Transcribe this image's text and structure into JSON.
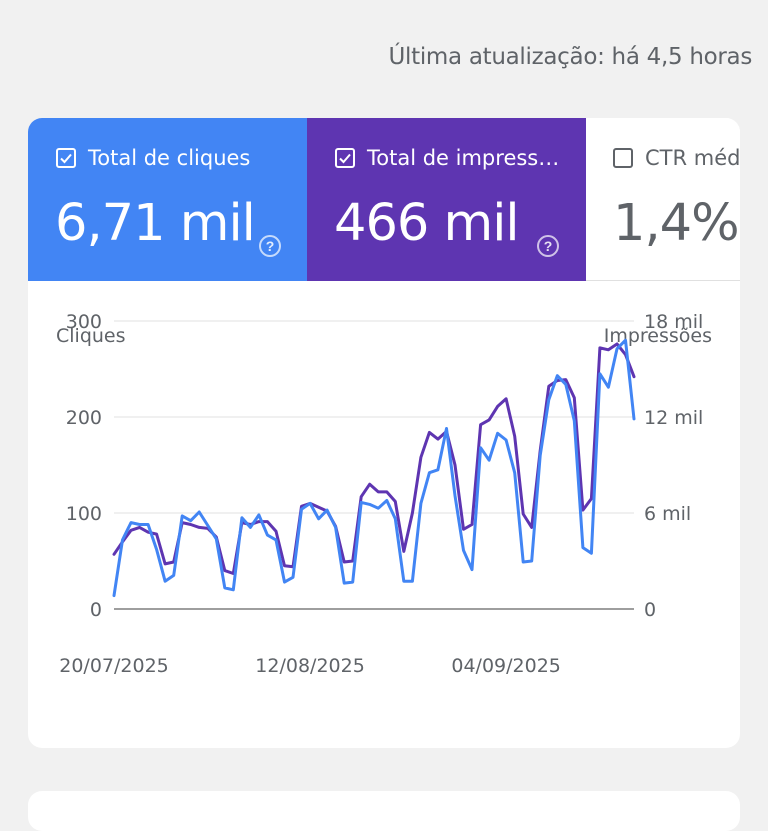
{
  "header": {
    "last_update": "Última atualização: há 4,5 horas"
  },
  "tiles": {
    "clicks": {
      "label": "Total de cliques",
      "value": "6,71 mil",
      "checked": true,
      "color": "#4285f4"
    },
    "impressions": {
      "label": "Total de impress…",
      "value": "466 mil",
      "checked": true,
      "color": "#5e35b1"
    },
    "ctr": {
      "label": "CTR méd",
      "value": "1,4%",
      "checked": false
    }
  },
  "icons": {
    "help": "help-icon",
    "check": "checkbox-checked-icon"
  },
  "chart_data": {
    "type": "line",
    "ylabel_left": "Cliques",
    "ylabel_right": "Impressões",
    "left_ticks": [
      "0",
      "100",
      "200",
      "300"
    ],
    "right_ticks": [
      "0",
      "6 mil",
      "12 mil",
      "18 mil"
    ],
    "ylim_left": [
      0,
      300
    ],
    "ylim_right": [
      0,
      18000
    ],
    "x_tick_labels": [
      "20/07/2025",
      "12/08/2025",
      "04/09/2025"
    ],
    "x_tick_index": [
      0,
      23,
      46
    ],
    "grid": true,
    "series": [
      {
        "axis": "left",
        "color": "#4285f4",
        "values": [
          14,
          72,
          90,
          88,
          88,
          62,
          29,
          35,
          97,
          92,
          101,
          87,
          73,
          22,
          20,
          95,
          85,
          98,
          77,
          72,
          28,
          33,
          104,
          110,
          94,
          103,
          85,
          27,
          28,
          111,
          109,
          105,
          113,
          94,
          29,
          29,
          110,
          142,
          145,
          188,
          118,
          61,
          41,
          168,
          155,
          183,
          176,
          142,
          49,
          50,
          160,
          218,
          243,
          234,
          196,
          64,
          58,
          245,
          231,
          271,
          280,
          198
        ],
        "right_values": [
          840,
          4320,
          5400,
          5280,
          5280,
          3720,
          1740,
          2100,
          5820,
          5520,
          6060,
          5220,
          4380,
          1320,
          1200,
          5700,
          5100,
          5880,
          4620,
          4320,
          1680,
          1980,
          6240,
          6600,
          5640,
          6180,
          5100,
          1620,
          1680,
          6660,
          6540,
          6300,
          6780,
          5640,
          1740,
          1740,
          6600,
          8520,
          8700,
          11280,
          7080,
          3660,
          2460,
          10080,
          9300,
          10980,
          10560,
          8520,
          2940,
          3000,
          9600,
          13080,
          14580,
          14040,
          11760,
          3840,
          3480,
          14700,
          13860,
          16260,
          16800,
          11880
        ]
      },
      {
        "axis": "left",
        "color": "#5e35b1",
        "values": [
          57,
          70,
          82,
          85,
          80,
          78,
          47,
          49,
          90,
          88,
          85,
          84,
          75,
          40,
          37,
          90,
          88,
          91,
          91,
          81,
          45,
          44,
          107,
          110,
          106,
          102,
          86,
          49,
          50,
          117,
          130,
          122,
          122,
          112,
          60,
          100,
          158,
          184,
          177,
          185,
          150,
          83,
          88,
          192,
          197,
          211,
          219,
          180,
          99,
          85,
          165,
          232,
          238,
          239,
          220,
          103,
          115,
          272,
          270,
          276,
          265,
          242
        ]
      }
    ]
  }
}
